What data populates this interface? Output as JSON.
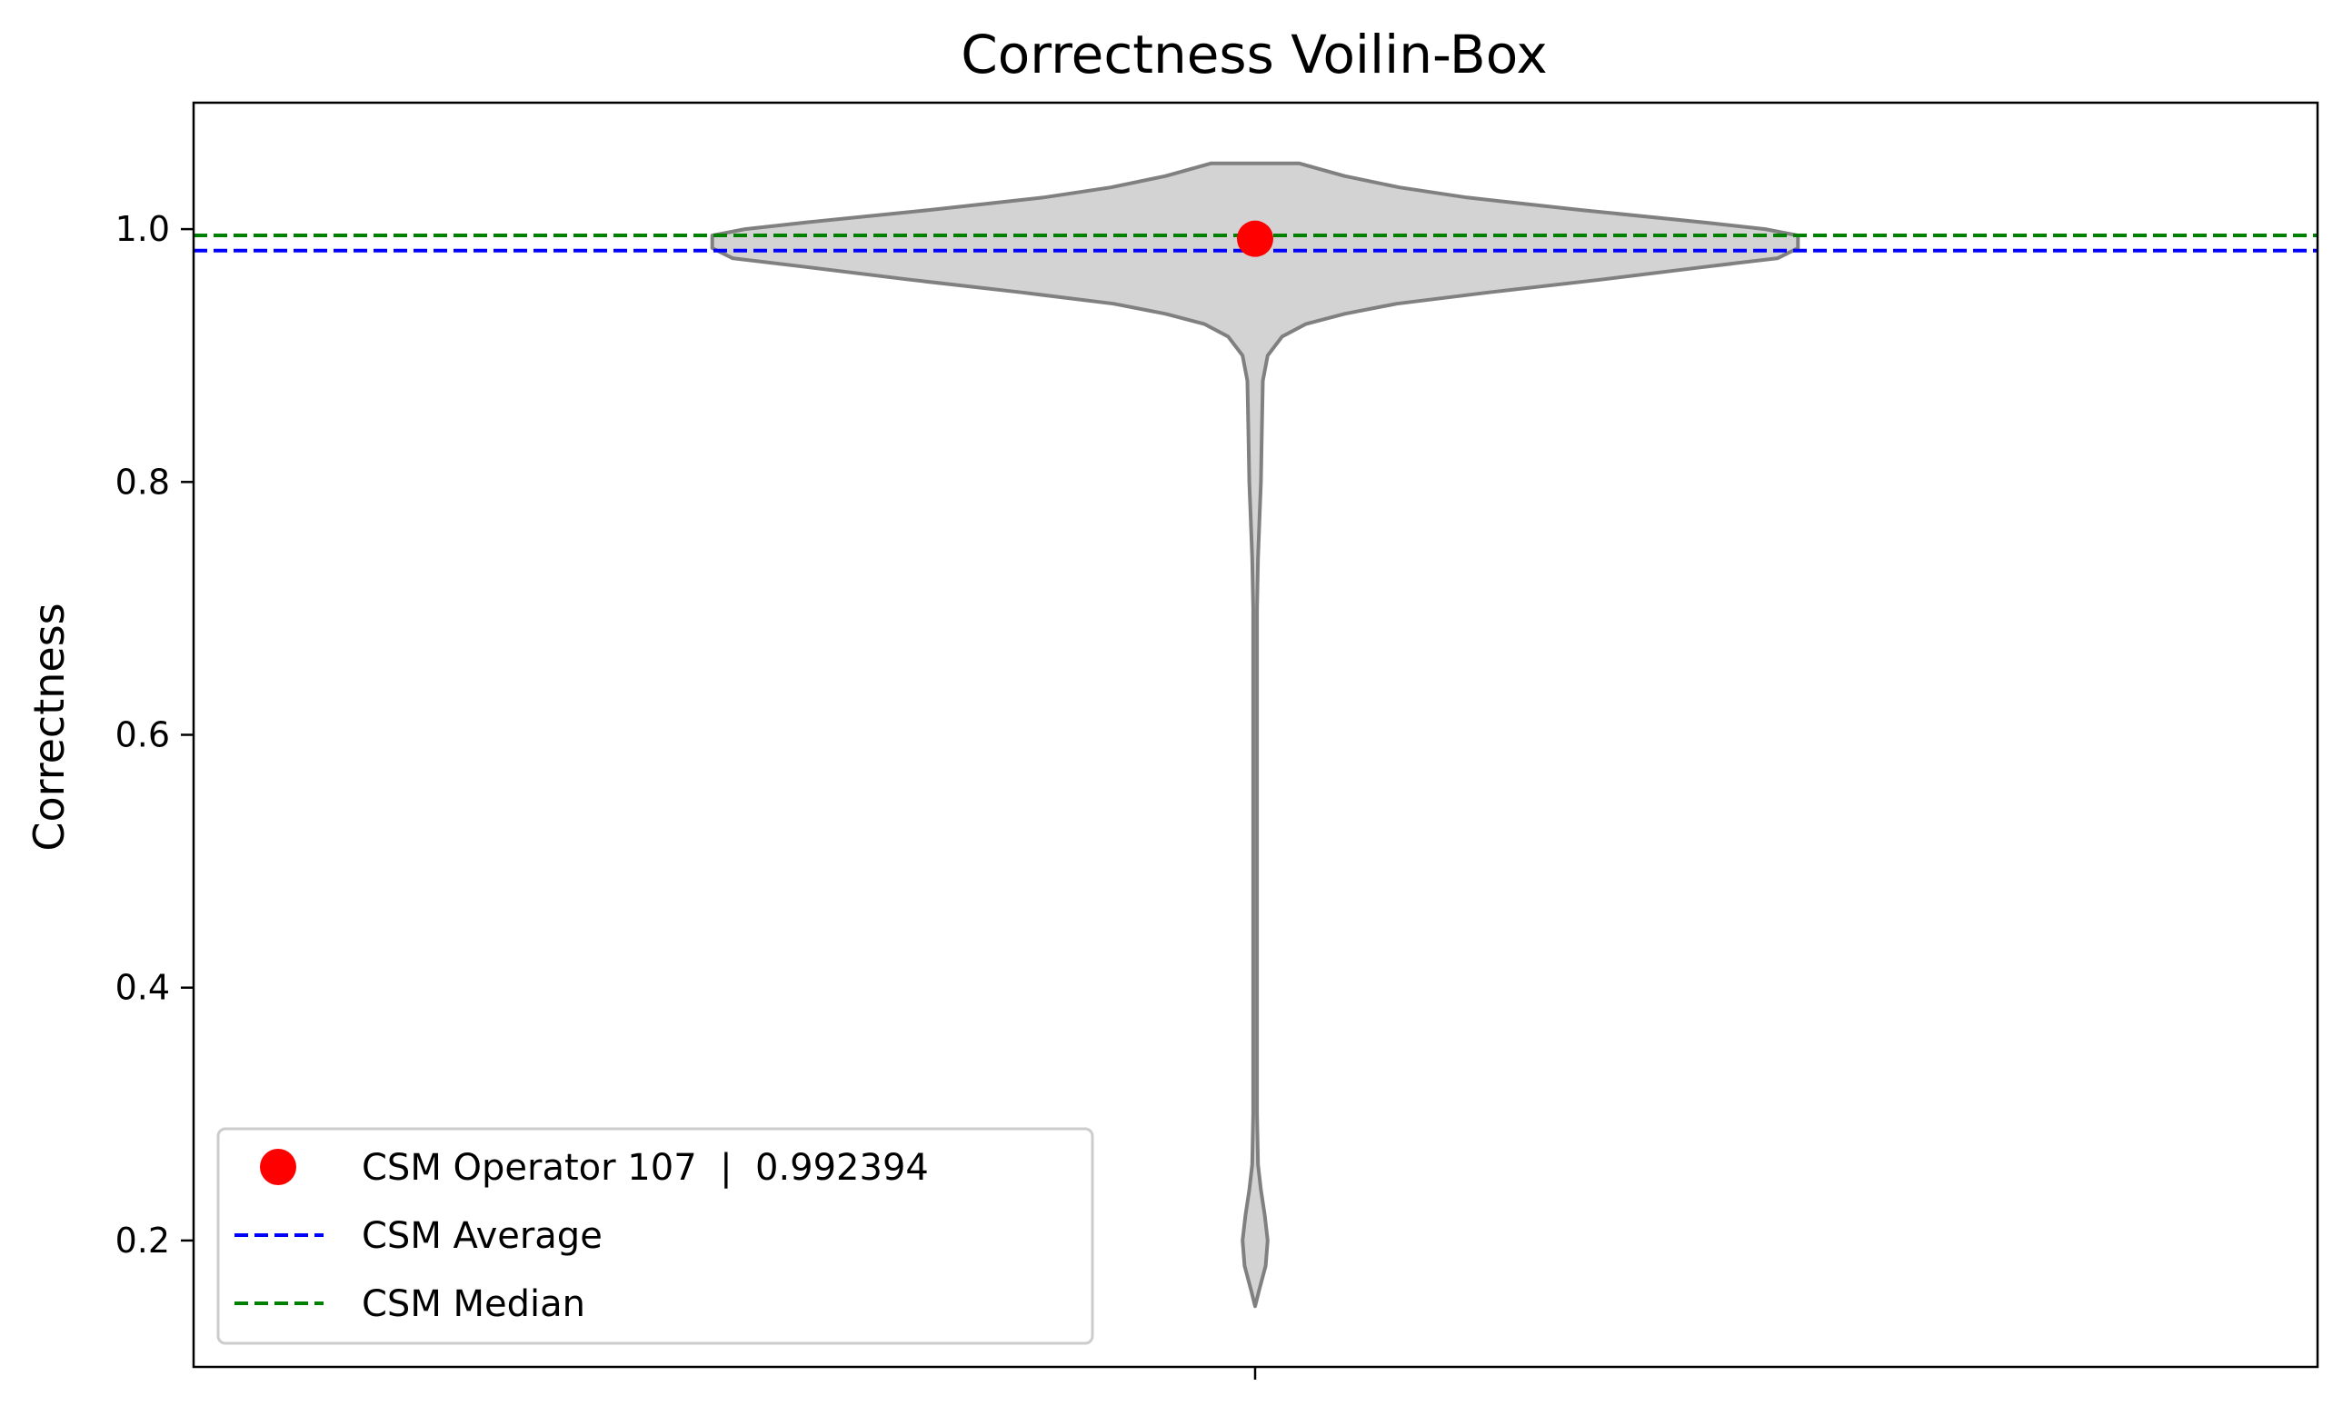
{
  "chart_data": {
    "type": "violin",
    "title": "Correctness Voilin-Box",
    "xlabel": "",
    "ylabel": "Correctness",
    "ylim": [
      0.1,
      1.1
    ],
    "yticks": [
      0.2,
      0.4,
      0.6,
      0.8,
      1.0
    ],
    "ytick_labels": [
      "0.2",
      "0.4",
      "0.6",
      "0.8",
      "1.0"
    ],
    "grid": false,
    "legend_position": "lower-left",
    "violin": {
      "fill_color": "#d3d3d3",
      "edge_color": "#808080",
      "y_min": 0.148,
      "y_max": 1.052,
      "profile": [
        [
          0.148,
          0.0
        ],
        [
          0.16,
          0.004
        ],
        [
          0.18,
          0.011
        ],
        [
          0.2,
          0.013
        ],
        [
          0.22,
          0.01
        ],
        [
          0.24,
          0.006
        ],
        [
          0.26,
          0.003
        ],
        [
          0.3,
          0.002
        ],
        [
          0.5,
          0.002
        ],
        [
          0.7,
          0.002
        ],
        [
          0.74,
          0.003
        ],
        [
          0.78,
          0.005
        ],
        [
          0.8,
          0.006
        ],
        [
          0.84,
          0.007
        ],
        [
          0.88,
          0.008
        ],
        [
          0.9,
          0.013
        ],
        [
          0.915,
          0.028
        ],
        [
          0.925,
          0.053
        ],
        [
          0.933,
          0.093
        ],
        [
          0.941,
          0.147
        ],
        [
          0.95,
          0.243
        ],
        [
          0.96,
          0.359
        ],
        [
          0.97,
          0.466
        ],
        [
          0.977,
          0.543
        ],
        [
          0.985,
          0.564
        ],
        [
          0.99,
          0.564
        ],
        [
          0.995,
          0.564
        ],
        [
          1.0,
          0.53
        ],
        [
          1.005,
          0.47
        ],
        [
          1.015,
          0.34
        ],
        [
          1.025,
          0.22
        ],
        [
          1.033,
          0.15
        ],
        [
          1.042,
          0.093
        ],
        [
          1.052,
          0.046
        ]
      ]
    },
    "series": [
      {
        "name": "CSM Operator 107  |  0.992394",
        "type": "point",
        "value": 0.992394,
        "color": "#ff0000"
      },
      {
        "name": "CSM Average",
        "type": "hline",
        "value": 0.983,
        "color": "#0000ff",
        "style": "dashed"
      },
      {
        "name": "CSM Median",
        "type": "hline",
        "value": 0.995,
        "color": "#008000",
        "style": "dashed"
      }
    ]
  }
}
